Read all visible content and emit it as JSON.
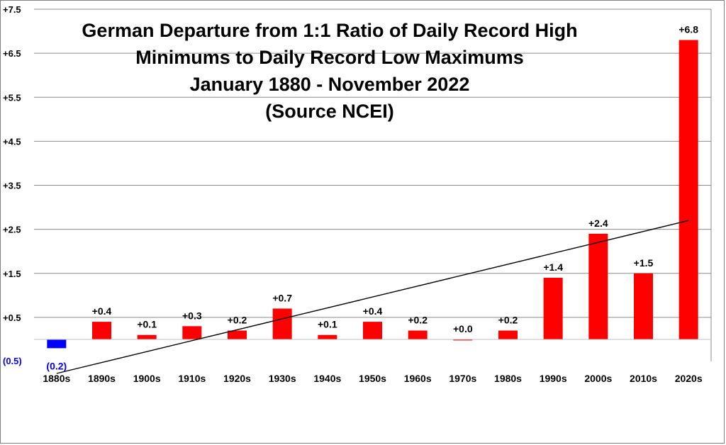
{
  "chart_data": {
    "type": "bar",
    "title_lines": [
      "German Departure from 1:1 Ratio of Daily Record High",
      "Minimums to Daily Record Low Maximums",
      "January 1880 - November 2022",
      "(Source NCEI)"
    ],
    "categories": [
      "1880s",
      "1890s",
      "1900s",
      "1910s",
      "1920s",
      "1930s",
      "1940s",
      "1950s",
      "1960s",
      "1970s",
      "1980s",
      "1990s",
      "2000s",
      "2010s",
      "2020s"
    ],
    "values": [
      -0.2,
      0.4,
      0.1,
      0.3,
      0.2,
      0.7,
      0.1,
      0.4,
      0.2,
      0.0,
      0.2,
      1.4,
      2.4,
      1.5,
      6.8
    ],
    "data_labels": [
      "(0.2)",
      "+0.4",
      "+0.1",
      "+0.3",
      "+0.2",
      "+0.7",
      "+0.1",
      "+0.4",
      "+0.2",
      "+0.0",
      "+0.2",
      "+1.4",
      "+2.4",
      "+1.5",
      "+6.8"
    ],
    "y_ticks": [
      {
        "value": 7.5,
        "label": "+7.5"
      },
      {
        "value": 6.5,
        "label": "+6.5"
      },
      {
        "value": 5.5,
        "label": "+5.5"
      },
      {
        "value": 4.5,
        "label": "+4.5"
      },
      {
        "value": 3.5,
        "label": "+3.5"
      },
      {
        "value": 2.5,
        "label": "+2.5"
      },
      {
        "value": 1.5,
        "label": "+1.5"
      },
      {
        "value": 0.5,
        "label": "+0.5"
      },
      {
        "value": -0.5,
        "label": "(0.5)"
      }
    ],
    "ylim": [
      -0.5,
      7.5
    ],
    "grid": true,
    "positive_color": "#ff0000",
    "negative_color": "#0000ff",
    "trendline": {
      "start": -0.5,
      "end": 2.7,
      "color": "#000000"
    }
  }
}
